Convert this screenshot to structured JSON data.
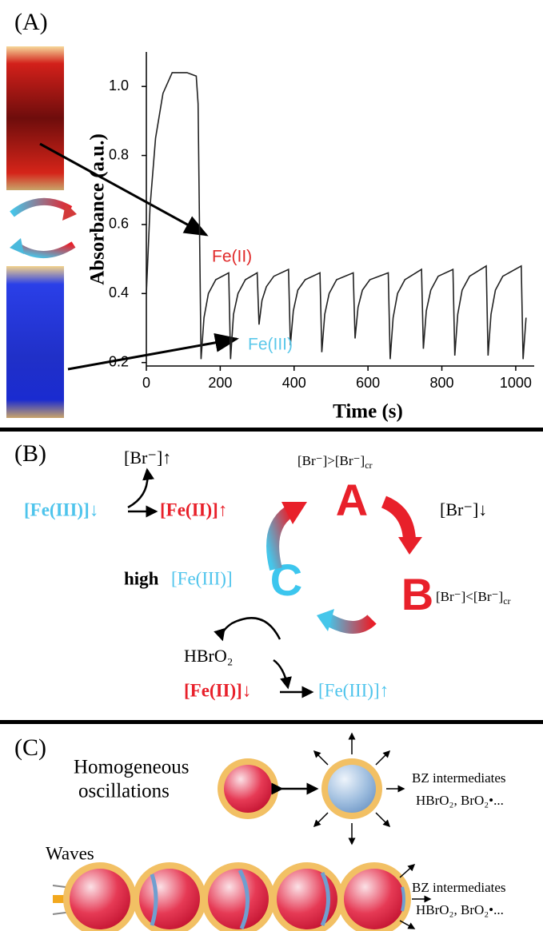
{
  "chart_data": {
    "type": "line",
    "xlabel": "Time (s)",
    "ylabel": "Absorbance (a.u.)",
    "xlim": [
      0,
      1050
    ],
    "ylim": [
      0.19,
      1.1
    ],
    "xticks": [
      0,
      200,
      400,
      600,
      800,
      1000
    ],
    "yticks": [
      0.2,
      0.4,
      0.6,
      0.8,
      {
        "value": 1,
        "label": "1.0"
      }
    ],
    "color": "#222",
    "annotations": [
      "Fe(II)",
      "Fe(III)"
    ],
    "x": [
      0,
      10,
      25,
      45,
      70,
      110,
      135,
      140,
      148,
      156,
      168,
      188,
      223,
      228,
      236,
      248,
      268,
      300,
      305,
      313,
      325,
      345,
      385,
      390,
      398,
      410,
      430,
      470,
      475,
      483,
      495,
      515,
      560,
      565,
      573,
      585,
      605,
      655,
      660,
      668,
      680,
      700,
      745,
      750,
      758,
      770,
      790,
      830,
      835,
      843,
      855,
      875,
      920,
      925,
      933,
      945,
      965,
      1015,
      1020,
      1028
    ],
    "values": [
      0.4,
      0.65,
      0.85,
      0.98,
      1.04,
      1.04,
      1.03,
      0.95,
      0.21,
      0.33,
      0.4,
      0.44,
      0.46,
      0.21,
      0.34,
      0.4,
      0.44,
      0.46,
      0.31,
      0.38,
      0.42,
      0.45,
      0.47,
      0.25,
      0.35,
      0.41,
      0.44,
      0.46,
      0.23,
      0.34,
      0.4,
      0.44,
      0.46,
      0.27,
      0.36,
      0.41,
      0.44,
      0.46,
      0.21,
      0.33,
      0.4,
      0.44,
      0.47,
      0.24,
      0.35,
      0.41,
      0.45,
      0.47,
      0.22,
      0.34,
      0.41,
      0.45,
      0.48,
      0.22,
      0.34,
      0.41,
      0.45,
      0.48,
      0.21,
      0.33
    ]
  },
  "panel_a": {
    "label": "(A)"
  },
  "panel_b": {
    "label": "(B)",
    "br_up": "[Br⁻]↑",
    "fe3_down": "[Fe(III)]↓",
    "fe2_up": "[Fe(II)]↑",
    "br_gt": {
      "text": "[Br⁻]>[Br⁻]",
      "sub": "cr"
    },
    "state_a": "A",
    "br_down": "[Br⁻]↓",
    "state_b": "B",
    "br_lt": {
      "text": "[Br⁻]<[Br⁻]",
      "sub": "cr"
    },
    "state_c": "C",
    "high": "high",
    "fe3": "[Fe(III)]",
    "hbro2": "HBrO₂",
    "fe2_down": "[Fe(II)]↓",
    "fe3_up": "[Fe(III)]↑"
  },
  "panel_c": {
    "label": "(C)",
    "homogeneous": [
      "Homogeneous",
      "oscillations"
    ],
    "waves": "Waves",
    "intermediates_top": [
      "BZ intermediates",
      "HBrO₂, BrO₂•..."
    ],
    "intermediates_bottom": [
      "BZ intermediates",
      "HBrO₂, BrO₂•..."
    ]
  }
}
